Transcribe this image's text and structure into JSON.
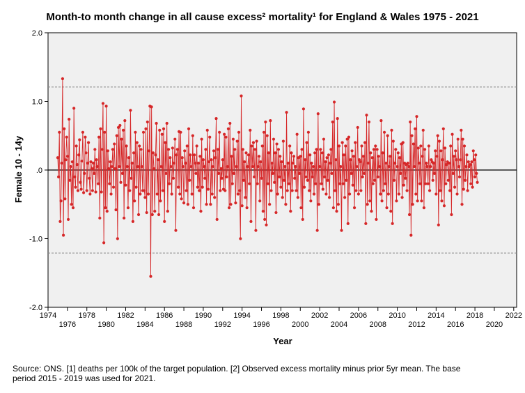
{
  "chart_data": {
    "type": "line",
    "title": "Month-to month change in all cause excess² mortality¹  for England & Wales 1975 - 2021",
    "xlabel": "Year",
    "ylabel": "Female 10 - 14y",
    "xlim": [
      1974,
      2022.3
    ],
    "ylim": [
      -2.0,
      2.0
    ],
    "x_ticks": [
      1974,
      1976,
      1978,
      1980,
      1982,
      1984,
      1986,
      1988,
      1990,
      1992,
      1994,
      1996,
      1998,
      2000,
      2002,
      2004,
      2006,
      2008,
      2010,
      2012,
      2014,
      2016,
      2018,
      2020,
      2022
    ],
    "x_tick_labels": [
      "1974",
      "1976",
      "1978",
      "1980",
      "1982",
      "1984",
      "1986",
      "1988",
      "1990",
      "1992",
      "1994",
      "1996",
      "1998",
      "2000",
      "2002",
      "2004",
      "2006",
      "2008",
      "2010",
      "2012",
      "2014",
      "2016",
      "2018",
      "2020",
      "2022"
    ],
    "y_ticks": [
      2.0,
      1.0,
      0.0,
      -1.0,
      -2.0
    ],
    "y_tick_labels": [
      "2.0",
      "1.0",
      ".0",
      "-1.0",
      "-2.0"
    ],
    "reference_lines": [
      {
        "y": 0.0,
        "style": "solid"
      },
      {
        "y": 1.21,
        "style": "dashed"
      },
      {
        "y": -1.21,
        "style": "dashed"
      }
    ],
    "grid": false,
    "colors": {
      "series": "#d62728",
      "plot_bg": "#f0f0f0",
      "reference": "#000000",
      "limits": "#888888"
    },
    "series": [
      {
        "x_start": 1975.0,
        "x_step_months": 1,
        "values": [
          0.18,
          -0.1,
          0.55,
          -0.75,
          -0.45,
          0.1,
          1.33,
          -0.95,
          0.6,
          -0.42,
          0.15,
          0.48,
          0.2,
          -0.72,
          0.74,
          -0.15,
          0.05,
          -0.5,
          0.12,
          -0.55,
          0.9,
          -0.1,
          -0.25,
          0.35,
          0.08,
          -0.3,
          0.22,
          0.44,
          -0.18,
          -0.28,
          0.13,
          0.55,
          -0.33,
          -0.05,
          0.48,
          0.25,
          -0.3,
          0.1,
          0.4,
          -0.12,
          -0.35,
          0.12,
          0.02,
          -0.3,
          0.1,
          -0.05,
          0.3,
          -0.32,
          0.15,
          0.05,
          -0.2,
          0.48,
          -0.7,
          0.6,
          -0.32,
          0.3,
          0.97,
          -1.06,
          0.55,
          -0.55,
          0.93,
          -0.6,
          0.28,
          0.02,
          -0.2,
          0.12,
          -0.35,
          0.05,
          0.3,
          -0.25,
          0.38,
          0.02,
          -0.58,
          0.5,
          -1.0,
          0.62,
          0.05,
          0.65,
          -0.18,
          0.45,
          -0.05,
          0.58,
          -0.7,
          0.72,
          -0.22,
          0.35,
          0.05,
          -0.55,
          0.18,
          -0.3,
          0.87,
          -0.12,
          0.1,
          -0.75,
          0.25,
          -0.45,
          0.55,
          -0.25,
          0.4,
          0.05,
          -0.65,
          0.35,
          -0.35,
          0.3,
          0.05,
          -0.3,
          0.55,
          -0.3,
          -0.4,
          0.6,
          -0.62,
          0.7,
          -0.35,
          0.28,
          0.93,
          -1.55,
          0.92,
          -0.65,
          0.25,
          0.02,
          -0.6,
          0.22,
          0.68,
          -0.35,
          0.15,
          -0.65,
          0.58,
          -0.45,
          0.05,
          0.52,
          -0.3,
          0.6,
          -0.75,
          0.4,
          -0.05,
          0.68,
          -0.6,
          0.3,
          -0.2,
          0.18,
          0.05,
          -0.35,
          0.32,
          -0.12,
          0.1,
          0.45,
          -0.88,
          0.22,
          0.3,
          -0.25,
          0.56,
          -0.35,
          0.55,
          -0.42,
          0.18,
          0.05,
          -0.48,
          0.28,
          0.1,
          -0.3,
          0.35,
          -0.5,
          0.6,
          -0.15,
          0.22,
          0.05,
          -0.35,
          0.5,
          -0.55,
          0.22,
          0.1,
          -0.05,
          0.35,
          -0.25,
          0.1,
          -0.3,
          0.2,
          -0.6,
          0.45,
          -0.25,
          0.15,
          0.05,
          -0.12,
          0.3,
          -0.5,
          0.58,
          -0.28,
          0.12,
          0.48,
          -0.5,
          0.15,
          -0.35,
          0.05,
          0.28,
          -0.4,
          0.18,
          0.75,
          -0.72,
          0.3,
          -0.05,
          0.55,
          -0.3,
          0.02,
          -0.12,
          0.15,
          -0.28,
          0.52,
          -0.3,
          0.48,
          -0.1,
          0.05,
          0.6,
          -0.55,
          0.68,
          -0.5,
          0.2,
          -0.2,
          0.45,
          -0.05,
          0.3,
          -0.48,
          0.05,
          0.42,
          -0.35,
          0.55,
          -0.3,
          -1.0,
          1.08,
          -0.52,
          0.3,
          -0.15,
          0.12,
          -0.4,
          0.25,
          -0.55,
          0.05,
          0.22,
          -0.2,
          0.58,
          -0.75,
          0.35,
          0.05,
          0.4,
          -0.1,
          0.3,
          -0.88,
          0.42,
          -0.2,
          0.05,
          0.2,
          -0.45,
          0.12,
          -0.12,
          0.35,
          -0.6,
          0.55,
          -0.72,
          0.7,
          -0.8,
          0.5,
          -0.2,
          0.25,
          -0.5,
          0.72,
          -0.3,
          0.1,
          -0.05,
          0.45,
          -0.18,
          0.25,
          -0.62,
          0.38,
          -0.35,
          0.3,
          -0.1,
          0.2,
          -0.25,
          0.12,
          -0.4,
          0.42,
          -0.15,
          0.05,
          -0.5,
          0.84,
          -0.3,
          0.1,
          -0.2,
          0.35,
          -0.6,
          0.25,
          -0.3,
          0.1,
          0.2,
          -0.12,
          0.05,
          -0.3,
          0.52,
          -0.4,
          0.18,
          -0.05,
          0.2,
          -0.55,
          0.3,
          -0.72,
          0.89,
          -0.25,
          0.15,
          -0.1,
          0.4,
          -0.15,
          0.55,
          -0.3,
          0.22,
          -0.45,
          0.1,
          -0.1,
          0.05,
          -0.35,
          0.25,
          -0.2,
          0.3,
          -0.88,
          0.82,
          -0.5,
          0.05,
          0.3,
          -0.2,
          0.25,
          -0.28,
          0.45,
          -0.1,
          0.12,
          -0.35,
          0.18,
          -0.15,
          0.22,
          -0.4,
          0.1,
          0.3,
          -0.05,
          0.7,
          -0.55,
          0.99,
          -0.3,
          0.15,
          -0.6,
          0.75,
          -0.5,
          0.35,
          -0.2,
          0.05,
          -0.88,
          0.4,
          -0.2,
          0.22,
          -0.4,
          0.35,
          -0.15,
          0.45,
          -0.78,
          0.48,
          -0.35,
          0.15,
          -0.05,
          0.28,
          -0.22,
          0.2,
          -0.55,
          0.4,
          -0.3,
          0.05,
          0.62,
          -0.35,
          0.15,
          0.12,
          -0.3,
          0.35,
          -0.1,
          0.2,
          -0.05,
          0.4,
          -0.78,
          0.8,
          -0.5,
          0.1,
          0.7,
          -0.45,
          0.25,
          -0.6,
          0.18,
          -0.2,
          0.3,
          -0.15,
          0.35,
          -0.72,
          0.3,
          -0.1,
          0.2,
          0.05,
          -0.35,
          0.72,
          -0.45,
          0.25,
          -0.3,
          0.55,
          -0.2,
          0.1,
          -0.55,
          0.5,
          -0.35,
          0.05,
          0.2,
          -0.6,
          0.58,
          -0.78,
          0.42,
          -0.15,
          0.1,
          0.3,
          -0.45,
          0.05,
          0.25,
          -0.35,
          0.18,
          -0.05,
          0.38,
          -0.4,
          0.4,
          -0.22,
          0.1,
          -0.12,
          0.08,
          -0.3,
          0.1,
          0.05,
          -0.65,
          0.7,
          -0.95,
          0.5,
          -0.5,
          0.38,
          0.05,
          0.6,
          -0.35,
          0.78,
          -0.45,
          0.32,
          0.1,
          -0.2,
          0.35,
          -0.45,
          0.2,
          0.58,
          -0.55,
          0.3,
          -0.2,
          0.1,
          0.05,
          -0.2,
          0.35,
          -0.3,
          0.05,
          0.15,
          0.12,
          -0.15,
          0.1,
          -0.05,
          0.28,
          -0.35,
          0.2,
          0.5,
          -0.8,
          0.42,
          -0.3,
          0.28,
          -0.45,
          0.15,
          0.6,
          -0.52,
          0.32,
          -0.2,
          0.08,
          0.12,
          -0.15,
          0.1,
          -0.3,
          0.35,
          -0.65,
          0.52,
          -0.05,
          0.2,
          -0.25,
          0.28,
          0.15,
          -0.35,
          0.45,
          0.05,
          -0.1,
          0.15,
          0.58,
          -0.5,
          0.45,
          -0.28,
          0.35,
          -0.15,
          0.05,
          0.22,
          -0.3,
          0.12,
          0.05,
          0.08,
          -0.2,
          0.12,
          -0.25,
          0.28,
          0.15,
          -0.1,
          0.22,
          -0.05,
          -0.18
        ]
      }
    ]
  },
  "footnote": {
    "line1": "Source: ONS. [1] deaths per 100k of the target population. [2] Observed excess mortality minus prior 5yr mean. The base",
    "line2": "period 2015 - 2019 was used for 2021."
  }
}
